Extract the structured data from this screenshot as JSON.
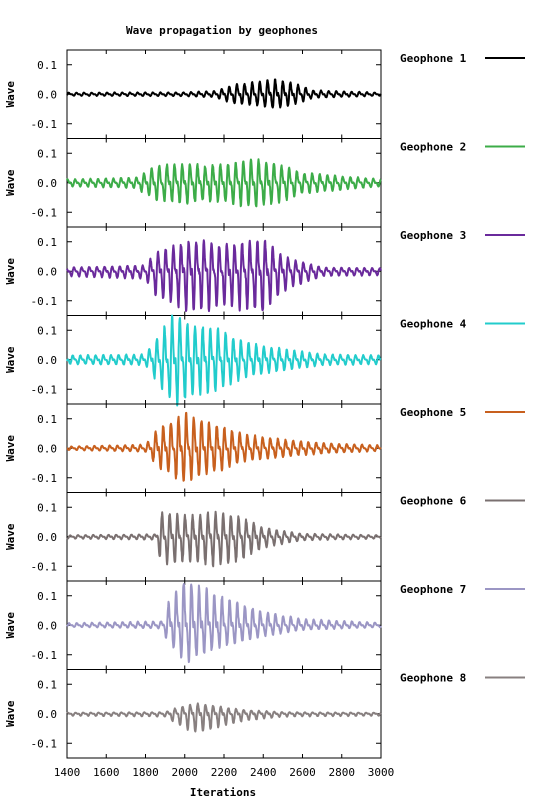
{
  "chart_data": {
    "type": "line",
    "title": "Wave propagation by geophones",
    "xlabel": "Iterations",
    "ylabel": "Wave",
    "xlim": [
      1400,
      3000
    ],
    "x_ticks": [
      "1400",
      "1600",
      "1800",
      "2000",
      "2200",
      "2400",
      "2600",
      "2800",
      "3000"
    ],
    "ylim": [
      -0.15,
      0.15
    ],
    "y_ticks": [
      "0.1",
      "0.0",
      "-0.1"
    ],
    "grid": false,
    "legend_position": "right",
    "series": [
      {
        "name": "Geophone 1",
        "color": "#000000",
        "envelope": [
          [
            1400,
            0.004
          ],
          [
            2000,
            0.005
          ],
          [
            2150,
            0.008
          ],
          [
            2250,
            0.025
          ],
          [
            2350,
            0.03
          ],
          [
            2450,
            0.04
          ],
          [
            2550,
            0.03
          ],
          [
            2650,
            0.01
          ],
          [
            3000,
            0.004
          ]
        ],
        "peak_max": 0.05,
        "peak_min": -0.045
      },
      {
        "name": "Geophone 2",
        "color": "#3cac48",
        "envelope": [
          [
            1400,
            0.01
          ],
          [
            1750,
            0.015
          ],
          [
            1850,
            0.05
          ],
          [
            2000,
            0.06
          ],
          [
            2100,
            0.05
          ],
          [
            2250,
            0.06
          ],
          [
            2350,
            0.07
          ],
          [
            2450,
            0.06
          ],
          [
            2600,
            0.03
          ],
          [
            3000,
            0.01
          ]
        ],
        "peak_max": 0.08,
        "peak_min": -0.08
      },
      {
        "name": "Geophone 3",
        "color": "#6a2a9c",
        "envelope": [
          [
            1400,
            0.01
          ],
          [
            1800,
            0.015
          ],
          [
            1850,
            0.05
          ],
          [
            2050,
            0.085
          ],
          [
            2200,
            0.07
          ],
          [
            2400,
            0.085
          ],
          [
            2500,
            0.04
          ],
          [
            2700,
            0.01
          ],
          [
            3000,
            0.008
          ]
        ],
        "peak_max": 0.105,
        "peak_min": -0.135
      },
      {
        "name": "Geophone 4",
        "color": "#22cccc",
        "envelope": [
          [
            1400,
            0.012
          ],
          [
            1800,
            0.015
          ],
          [
            1880,
            0.08
          ],
          [
            1950,
            0.13
          ],
          [
            2050,
            0.1
          ],
          [
            2150,
            0.09
          ],
          [
            2300,
            0.05
          ],
          [
            2500,
            0.03
          ],
          [
            2700,
            0.015
          ],
          [
            3000,
            0.012
          ]
        ],
        "peak_max": 0.15,
        "peak_min": -0.155
      },
      {
        "name": "Geophone 5",
        "color": "#c8601e",
        "envelope": [
          [
            1400,
            0.005
          ],
          [
            1800,
            0.01
          ],
          [
            1870,
            0.06
          ],
          [
            2000,
            0.1
          ],
          [
            2100,
            0.08
          ],
          [
            2300,
            0.04
          ],
          [
            2500,
            0.025
          ],
          [
            2700,
            0.015
          ],
          [
            3000,
            0.008
          ]
        ],
        "peak_max": 0.12,
        "peak_min": -0.11
      },
      {
        "name": "Geophone 6",
        "color": "#7a7070",
        "envelope": [
          [
            1400,
            0.005
          ],
          [
            1850,
            0.008
          ],
          [
            1880,
            0.08
          ],
          [
            2000,
            0.07
          ],
          [
            2150,
            0.08
          ],
          [
            2250,
            0.075
          ],
          [
            2400,
            0.03
          ],
          [
            2600,
            0.01
          ],
          [
            3000,
            0.005
          ]
        ],
        "peak_max": 0.085,
        "peak_min": -0.1
      },
      {
        "name": "Geophone 7",
        "color": "#9b96c4",
        "envelope": [
          [
            1400,
            0.005
          ],
          [
            1880,
            0.01
          ],
          [
            1920,
            0.06
          ],
          [
            2000,
            0.12
          ],
          [
            2100,
            0.09
          ],
          [
            2250,
            0.06
          ],
          [
            2400,
            0.035
          ],
          [
            2600,
            0.015
          ],
          [
            3000,
            0.006
          ]
        ],
        "peak_max": 0.14,
        "peak_min": -0.125
      },
      {
        "name": "Geophone 8",
        "color": "#888080",
        "envelope": [
          [
            1400,
            0.004
          ],
          [
            1900,
            0.006
          ],
          [
            1950,
            0.02
          ],
          [
            2050,
            0.04
          ],
          [
            2150,
            0.03
          ],
          [
            2300,
            0.015
          ],
          [
            2500,
            0.006
          ],
          [
            3000,
            0.004
          ]
        ],
        "peak_max": 0.035,
        "peak_min": -0.06
      }
    ]
  }
}
